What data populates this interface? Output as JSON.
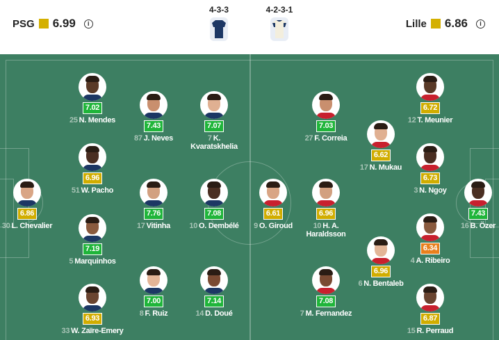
{
  "home": {
    "name": "PSG",
    "rating": "6.99",
    "formation": "4-3-3",
    "kit_color": "#1c3764"
  },
  "away": {
    "name": "Lille",
    "rating": "6.86",
    "formation": "4-2-3-1",
    "kit_color": "#f3eedd"
  },
  "info_icon": "info-circle-icon",
  "rating_colors": {
    "green": "#1fb53a",
    "yellow": "#d1ad00",
    "orange": "#e8801c"
  },
  "home_players": [
    {
      "number": "25",
      "name": "N. Mendes",
      "rating": "7.02"
    },
    {
      "number": "87",
      "name": "J. Neves",
      "rating": "7.43"
    },
    {
      "number": "7",
      "name": "K. Kvaratskhelia",
      "rating": "7.07"
    },
    {
      "number": "51",
      "name": "W. Pacho",
      "rating": "6.96"
    },
    {
      "number": "30",
      "name": "L. Chevalier",
      "rating": "6.86"
    },
    {
      "number": "17",
      "name": "Vitinha",
      "rating": "7.76"
    },
    {
      "number": "10",
      "name": "O. Dembélé",
      "rating": "7.08"
    },
    {
      "number": "5",
      "name": "Marquinhos",
      "rating": "7.19"
    },
    {
      "number": "8",
      "name": "F. Ruiz",
      "rating": "7.00"
    },
    {
      "number": "14",
      "name": "D. Doué",
      "rating": "7.14"
    },
    {
      "number": "33",
      "name": "W. Zaïre-Emery",
      "rating": "6.93"
    }
  ],
  "away_players": [
    {
      "number": "12",
      "name": "T. Meunier",
      "rating": "6.72"
    },
    {
      "number": "27",
      "name": "F. Correia",
      "rating": "7.03"
    },
    {
      "number": "17",
      "name": "N. Mukau",
      "rating": "6.62"
    },
    {
      "number": "3",
      "name": "N. Ngoy",
      "rating": "6.73"
    },
    {
      "number": "9",
      "name": "O. Giroud",
      "rating": "6.61"
    },
    {
      "number": "10",
      "name": "H. A. Haraldsson",
      "rating": "6.96"
    },
    {
      "number": "16",
      "name": "B. Özer",
      "rating": "7.43"
    },
    {
      "number": "4",
      "name": "A. Ribeiro",
      "rating": "6.34"
    },
    {
      "number": "6",
      "name": "N. Bentaleb",
      "rating": "6.96"
    },
    {
      "number": "7",
      "name": "M. Fernandez",
      "rating": "7.08"
    },
    {
      "number": "15",
      "name": "R. Perraud",
      "rating": "6.87"
    }
  ]
}
